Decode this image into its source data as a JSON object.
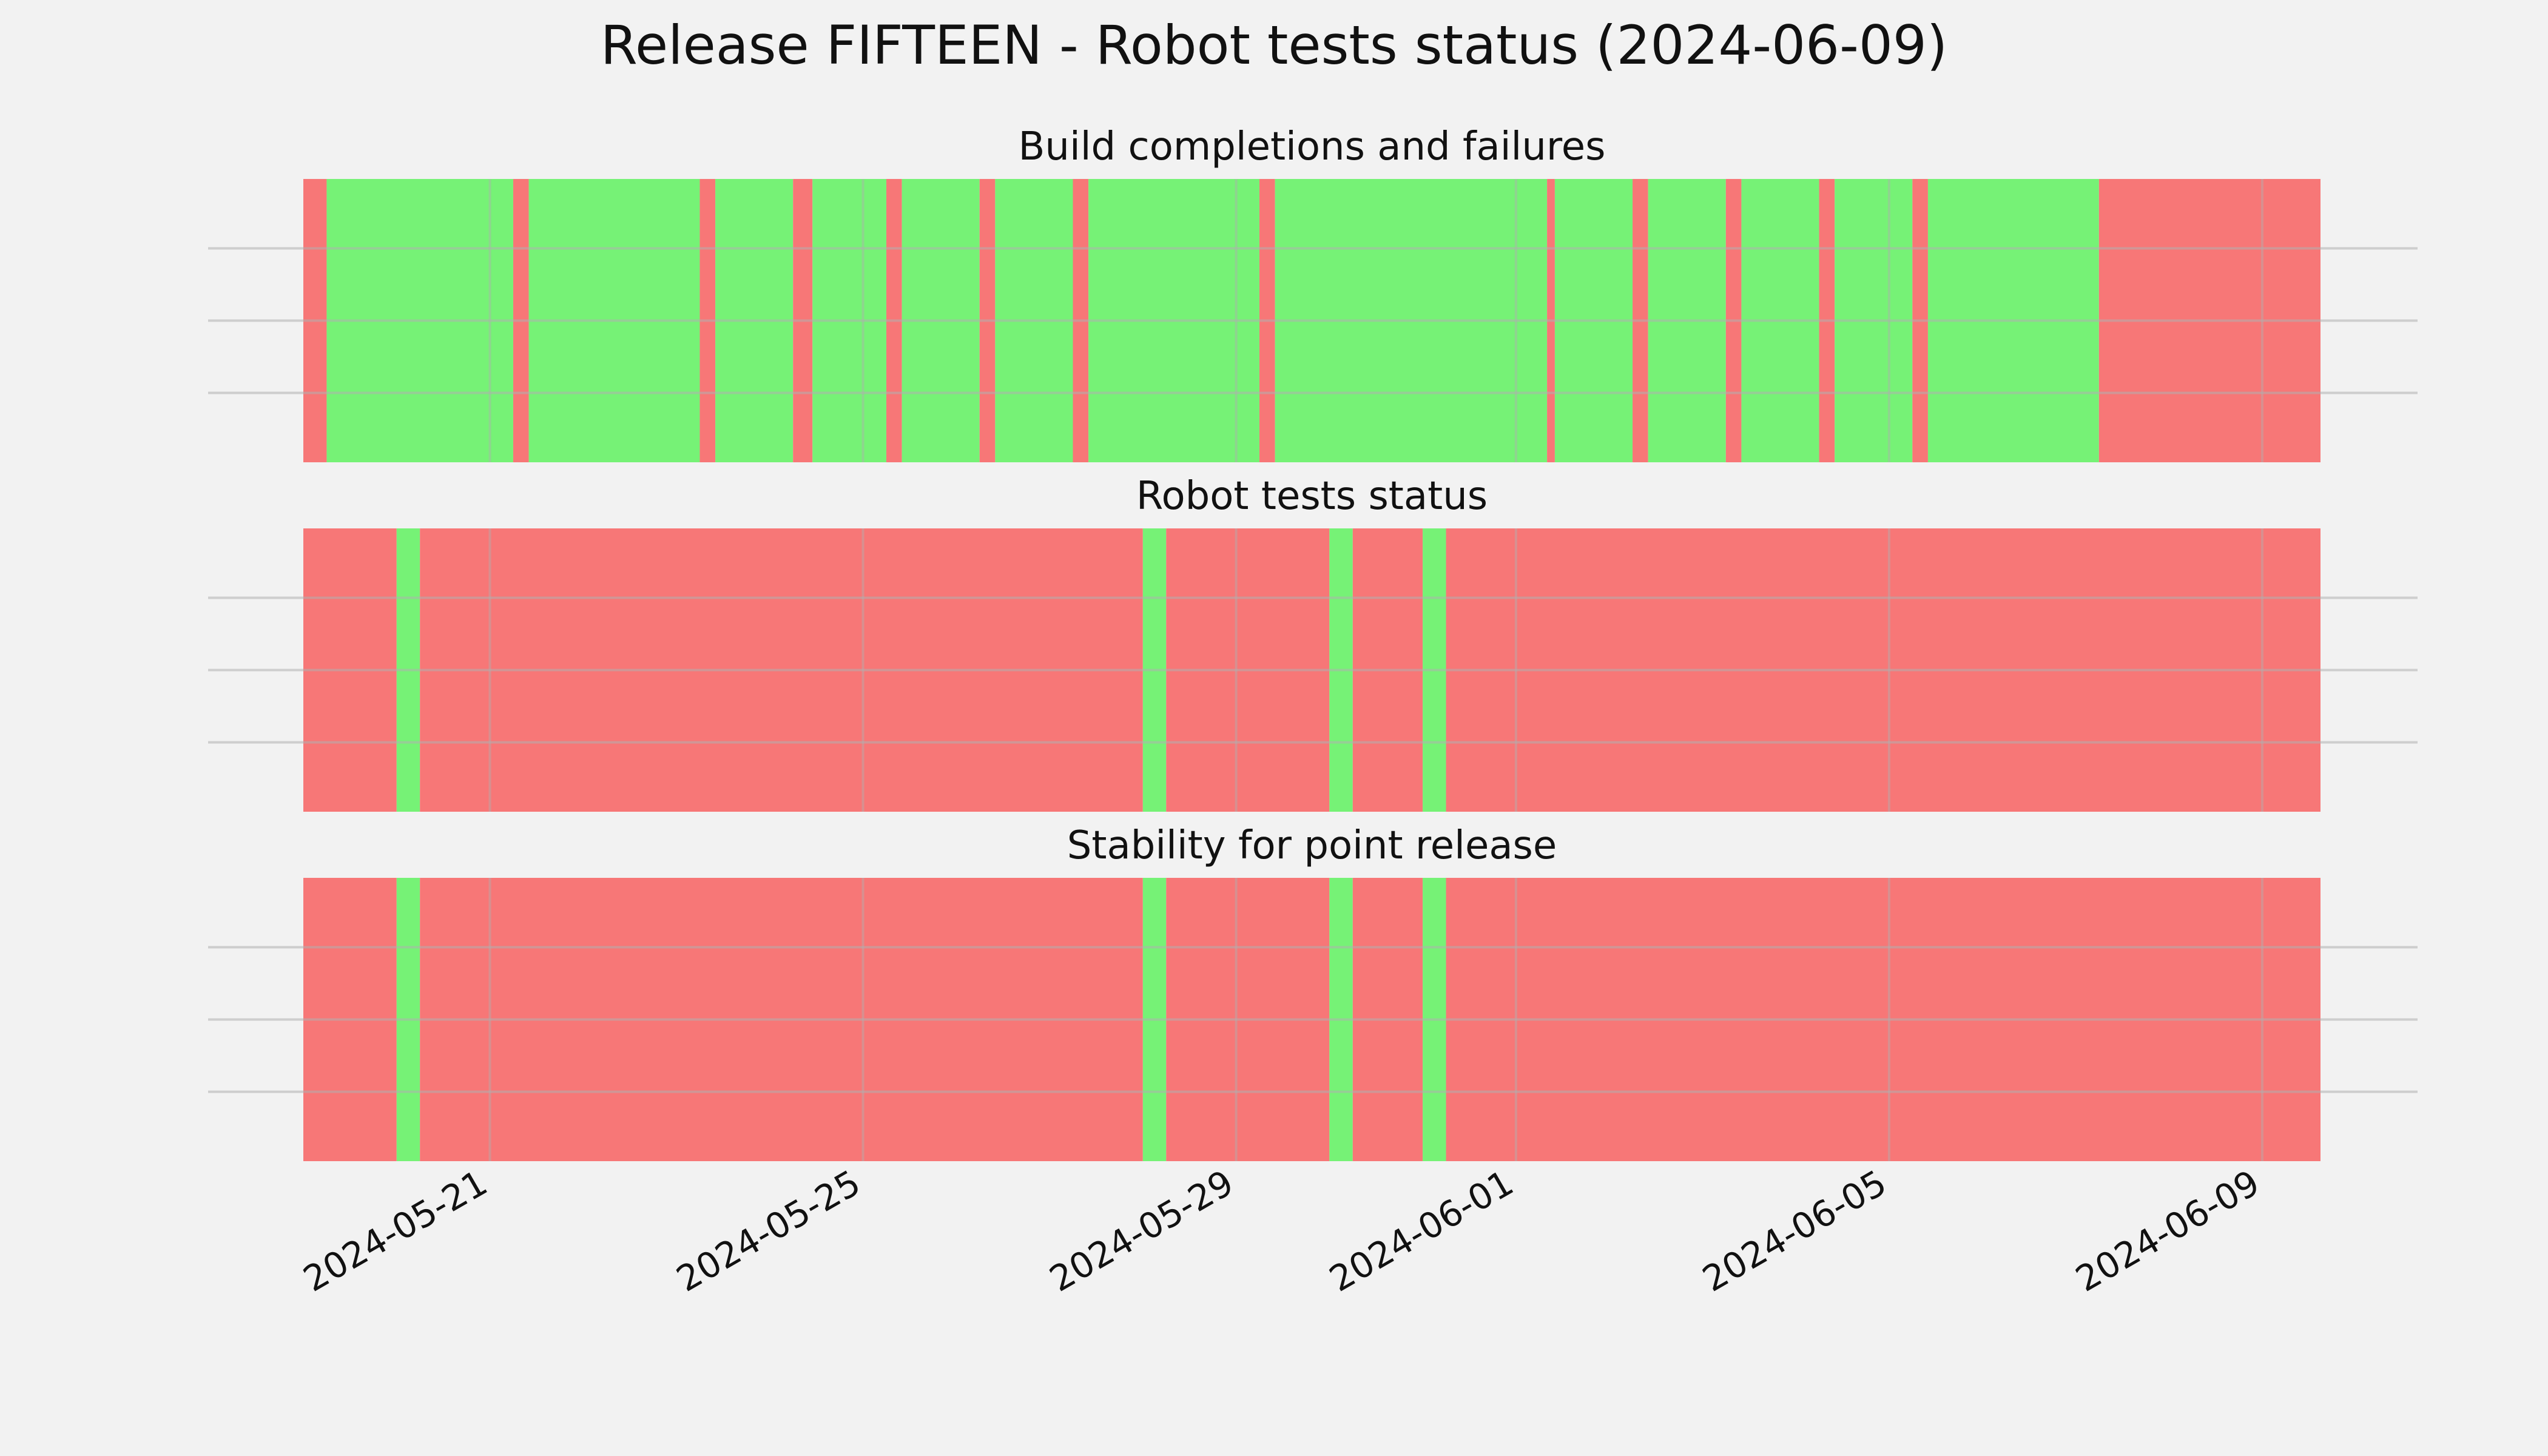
{
  "chart_data": {
    "type": "timeline",
    "title": "Release FIFTEEN - Robot tests status (2024-06-09)",
    "x_range": [
      "2024-05-19T00:00",
      "2024-06-09T15:00"
    ],
    "x_ticks": [
      "2024-05-21",
      "2024-05-25",
      "2024-05-29",
      "2024-06-01",
      "2024-06-05",
      "2024-06-09"
    ],
    "grid": true,
    "colors": {
      "success": "#76f276",
      "failure": "#f77777",
      "background": "#f2f2f2"
    },
    "panels": [
      {
        "title": "Build completions and failures",
        "segments": [
          {
            "start": "2024-05-19T00:00",
            "end": "2024-05-19T06:00",
            "status": "failure"
          },
          {
            "start": "2024-05-19T06:00",
            "end": "2024-05-21T06:00",
            "status": "success"
          },
          {
            "start": "2024-05-21T06:00",
            "end": "2024-05-21T10:00",
            "status": "failure"
          },
          {
            "start": "2024-05-21T10:00",
            "end": "2024-05-23T06:00",
            "status": "success"
          },
          {
            "start": "2024-05-23T06:00",
            "end": "2024-05-23T10:00",
            "status": "failure"
          },
          {
            "start": "2024-05-23T10:00",
            "end": "2024-05-24T06:00",
            "status": "success"
          },
          {
            "start": "2024-05-24T06:00",
            "end": "2024-05-24T11:00",
            "status": "failure"
          },
          {
            "start": "2024-05-24T11:00",
            "end": "2024-05-25T06:00",
            "status": "success"
          },
          {
            "start": "2024-05-25T06:00",
            "end": "2024-05-25T10:00",
            "status": "failure"
          },
          {
            "start": "2024-05-25T10:00",
            "end": "2024-05-26T06:00",
            "status": "success"
          },
          {
            "start": "2024-05-26T06:00",
            "end": "2024-05-26T10:00",
            "status": "failure"
          },
          {
            "start": "2024-05-26T10:00",
            "end": "2024-05-27T06:00",
            "status": "success"
          },
          {
            "start": "2024-05-27T06:00",
            "end": "2024-05-27T10:00",
            "status": "failure"
          },
          {
            "start": "2024-05-27T10:00",
            "end": "2024-05-29T06:00",
            "status": "success"
          },
          {
            "start": "2024-05-29T06:00",
            "end": "2024-05-29T10:00",
            "status": "failure"
          },
          {
            "start": "2024-05-29T10:00",
            "end": "2024-06-01T08:00",
            "status": "success"
          },
          {
            "start": "2024-06-01T08:00",
            "end": "2024-06-01T10:00",
            "status": "failure"
          },
          {
            "start": "2024-06-01T10:00",
            "end": "2024-06-02T06:00",
            "status": "success"
          },
          {
            "start": "2024-06-02T06:00",
            "end": "2024-06-02T10:00",
            "status": "failure"
          },
          {
            "start": "2024-06-02T10:00",
            "end": "2024-06-03T06:00",
            "status": "success"
          },
          {
            "start": "2024-06-03T06:00",
            "end": "2024-06-03T10:00",
            "status": "failure"
          },
          {
            "start": "2024-06-03T10:00",
            "end": "2024-06-04T06:00",
            "status": "success"
          },
          {
            "start": "2024-06-04T06:00",
            "end": "2024-06-04T10:00",
            "status": "failure"
          },
          {
            "start": "2024-06-04T10:00",
            "end": "2024-06-05T06:00",
            "status": "success"
          },
          {
            "start": "2024-06-05T06:00",
            "end": "2024-06-05T10:00",
            "status": "failure"
          },
          {
            "start": "2024-06-05T10:00",
            "end": "2024-06-07T06:00",
            "status": "success"
          },
          {
            "start": "2024-06-07T06:00",
            "end": "2024-06-09T15:00",
            "status": "failure"
          }
        ]
      },
      {
        "title": "Robot tests status",
        "segments": [
          {
            "start": "2024-05-19T00:00",
            "end": "2024-05-20T00:00",
            "status": "failure"
          },
          {
            "start": "2024-05-20T00:00",
            "end": "2024-05-20T06:00",
            "status": "success"
          },
          {
            "start": "2024-05-20T06:00",
            "end": "2024-05-28T00:00",
            "status": "failure"
          },
          {
            "start": "2024-05-28T00:00",
            "end": "2024-05-28T06:00",
            "status": "success"
          },
          {
            "start": "2024-05-28T06:00",
            "end": "2024-05-30T00:00",
            "status": "failure"
          },
          {
            "start": "2024-05-30T00:00",
            "end": "2024-05-30T06:00",
            "status": "success"
          },
          {
            "start": "2024-05-30T06:00",
            "end": "2024-05-31T00:00",
            "status": "failure"
          },
          {
            "start": "2024-05-31T00:00",
            "end": "2024-05-31T06:00",
            "status": "success"
          },
          {
            "start": "2024-05-31T06:00",
            "end": "2024-06-09T15:00",
            "status": "failure"
          }
        ]
      },
      {
        "title": "Stability for point release",
        "segments": [
          {
            "start": "2024-05-19T00:00",
            "end": "2024-05-20T00:00",
            "status": "failure"
          },
          {
            "start": "2024-05-20T00:00",
            "end": "2024-05-20T06:00",
            "status": "success"
          },
          {
            "start": "2024-05-20T06:00",
            "end": "2024-05-28T00:00",
            "status": "failure"
          },
          {
            "start": "2024-05-28T00:00",
            "end": "2024-05-28T06:00",
            "status": "success"
          },
          {
            "start": "2024-05-28T06:00",
            "end": "2024-05-30T00:00",
            "status": "failure"
          },
          {
            "start": "2024-05-30T00:00",
            "end": "2024-05-30T06:00",
            "status": "success"
          },
          {
            "start": "2024-05-30T06:00",
            "end": "2024-05-31T00:00",
            "status": "failure"
          },
          {
            "start": "2024-05-31T00:00",
            "end": "2024-05-31T06:00",
            "status": "success"
          },
          {
            "start": "2024-05-31T06:00",
            "end": "2024-06-09T15:00",
            "status": "failure"
          }
        ]
      }
    ]
  }
}
